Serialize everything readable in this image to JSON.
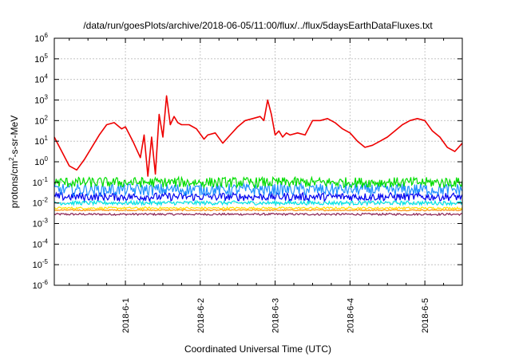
{
  "chart_data": {
    "type": "line",
    "title": "/data/run/goesPlots/archive/2018-06-05/11:00/flux/../flux/5daysEarthDataFluxes.txt",
    "xlabel": "Coordinated Universal Time (UTC)",
    "ylabel": {
      "pre": "protons/cm",
      "sup": "2",
      "post": "-s-sr-MeV"
    },
    "yscale": "log",
    "ylim": [
      1e-06,
      1000000.0
    ],
    "y_ticks": [
      {
        "label": "10",
        "exp": "-6",
        "value": -6
      },
      {
        "label": "10",
        "exp": "-5",
        "value": -5
      },
      {
        "label": "10",
        "exp": "-4",
        "value": -4
      },
      {
        "label": "10",
        "exp": "-3",
        "value": -3
      },
      {
        "label": "10",
        "exp": "-2",
        "value": -2
      },
      {
        "label": "10",
        "exp": "-1",
        "value": -1
      },
      {
        "label": "10",
        "exp": "0",
        "value": 0
      },
      {
        "label": "10",
        "exp": "1",
        "value": 1
      },
      {
        "label": "10",
        "exp": "2",
        "value": 2
      },
      {
        "label": "10",
        "exp": "3",
        "value": 3
      },
      {
        "label": "10",
        "exp": "4",
        "value": 4
      },
      {
        "label": "10",
        "exp": "5",
        "value": 5
      },
      {
        "label": "10",
        "exp": "6",
        "value": 6
      }
    ],
    "xlim_days": [
      -0.95,
      4.5
    ],
    "x_ticks": [
      {
        "label": "2018-6-1",
        "day": 0
      },
      {
        "label": "2018-6-2",
        "day": 1
      },
      {
        "label": "2018-6-3",
        "day": 2
      },
      {
        "label": "2018-6-4",
        "day": 3
      },
      {
        "label": "2018-6-5",
        "day": 4
      }
    ],
    "grid": true,
    "series": [
      {
        "color": "#ee0000",
        "x_days": [
          -0.95,
          -0.85,
          -0.75,
          -0.65,
          -0.55,
          -0.45,
          -0.35,
          -0.25,
          -0.15,
          -0.05,
          0.0,
          0.1,
          0.2,
          0.25,
          0.3,
          0.35,
          0.4,
          0.45,
          0.5,
          0.55,
          0.6,
          0.65,
          0.7,
          0.75,
          0.85,
          0.95,
          1.05,
          1.1,
          1.2,
          1.3,
          1.4,
          1.5,
          1.6,
          1.7,
          1.8,
          1.85,
          1.9,
          1.95,
          2.0,
          2.05,
          2.1,
          2.15,
          2.2,
          2.3,
          2.4,
          2.5,
          2.6,
          2.7,
          2.8,
          2.9,
          3.0,
          3.1,
          3.2,
          3.3,
          3.4,
          3.5,
          3.6,
          3.7,
          3.8,
          3.9,
          4.0,
          4.1,
          4.2,
          4.3,
          4.4,
          4.5
        ],
        "y_log": [
          1.2,
          0.5,
          -0.2,
          -0.4,
          0.1,
          0.7,
          1.3,
          1.8,
          1.9,
          1.6,
          1.7,
          1.0,
          0.2,
          1.3,
          -0.7,
          1.2,
          -0.6,
          2.3,
          1.2,
          3.2,
          1.8,
          2.2,
          1.9,
          1.8,
          1.8,
          1.6,
          1.1,
          1.3,
          1.4,
          0.9,
          1.3,
          1.7,
          2.0,
          2.1,
          2.2,
          2.0,
          3.0,
          2.3,
          1.3,
          1.5,
          1.2,
          1.4,
          1.3,
          1.4,
          1.3,
          2.0,
          2.0,
          2.1,
          1.9,
          1.6,
          1.4,
          1.0,
          0.7,
          0.8,
          1.0,
          1.2,
          1.5,
          1.8,
          2.0,
          2.1,
          2.0,
          1.5,
          1.2,
          0.7,
          0.5,
          0.9
        ]
      },
      {
        "color": "#00dd00",
        "level_log": -1.0,
        "jitter": 0.25
      },
      {
        "color": "#1e90ff",
        "level_log": -1.35,
        "jitter": 0.3
      },
      {
        "color": "#0000ee",
        "level_log": -1.7,
        "jitter": 0.2
      },
      {
        "color": "#00e5e5",
        "level_log": -2.0,
        "jitter": 0.1
      },
      {
        "color": "#ffe100",
        "level_log": -2.25,
        "jitter": 0.05
      },
      {
        "color": "#ff8c00",
        "level_log": -2.35,
        "jitter": 0.03
      },
      {
        "color": "#8b2252",
        "level_log": -2.55,
        "jitter": 0.05
      }
    ]
  }
}
